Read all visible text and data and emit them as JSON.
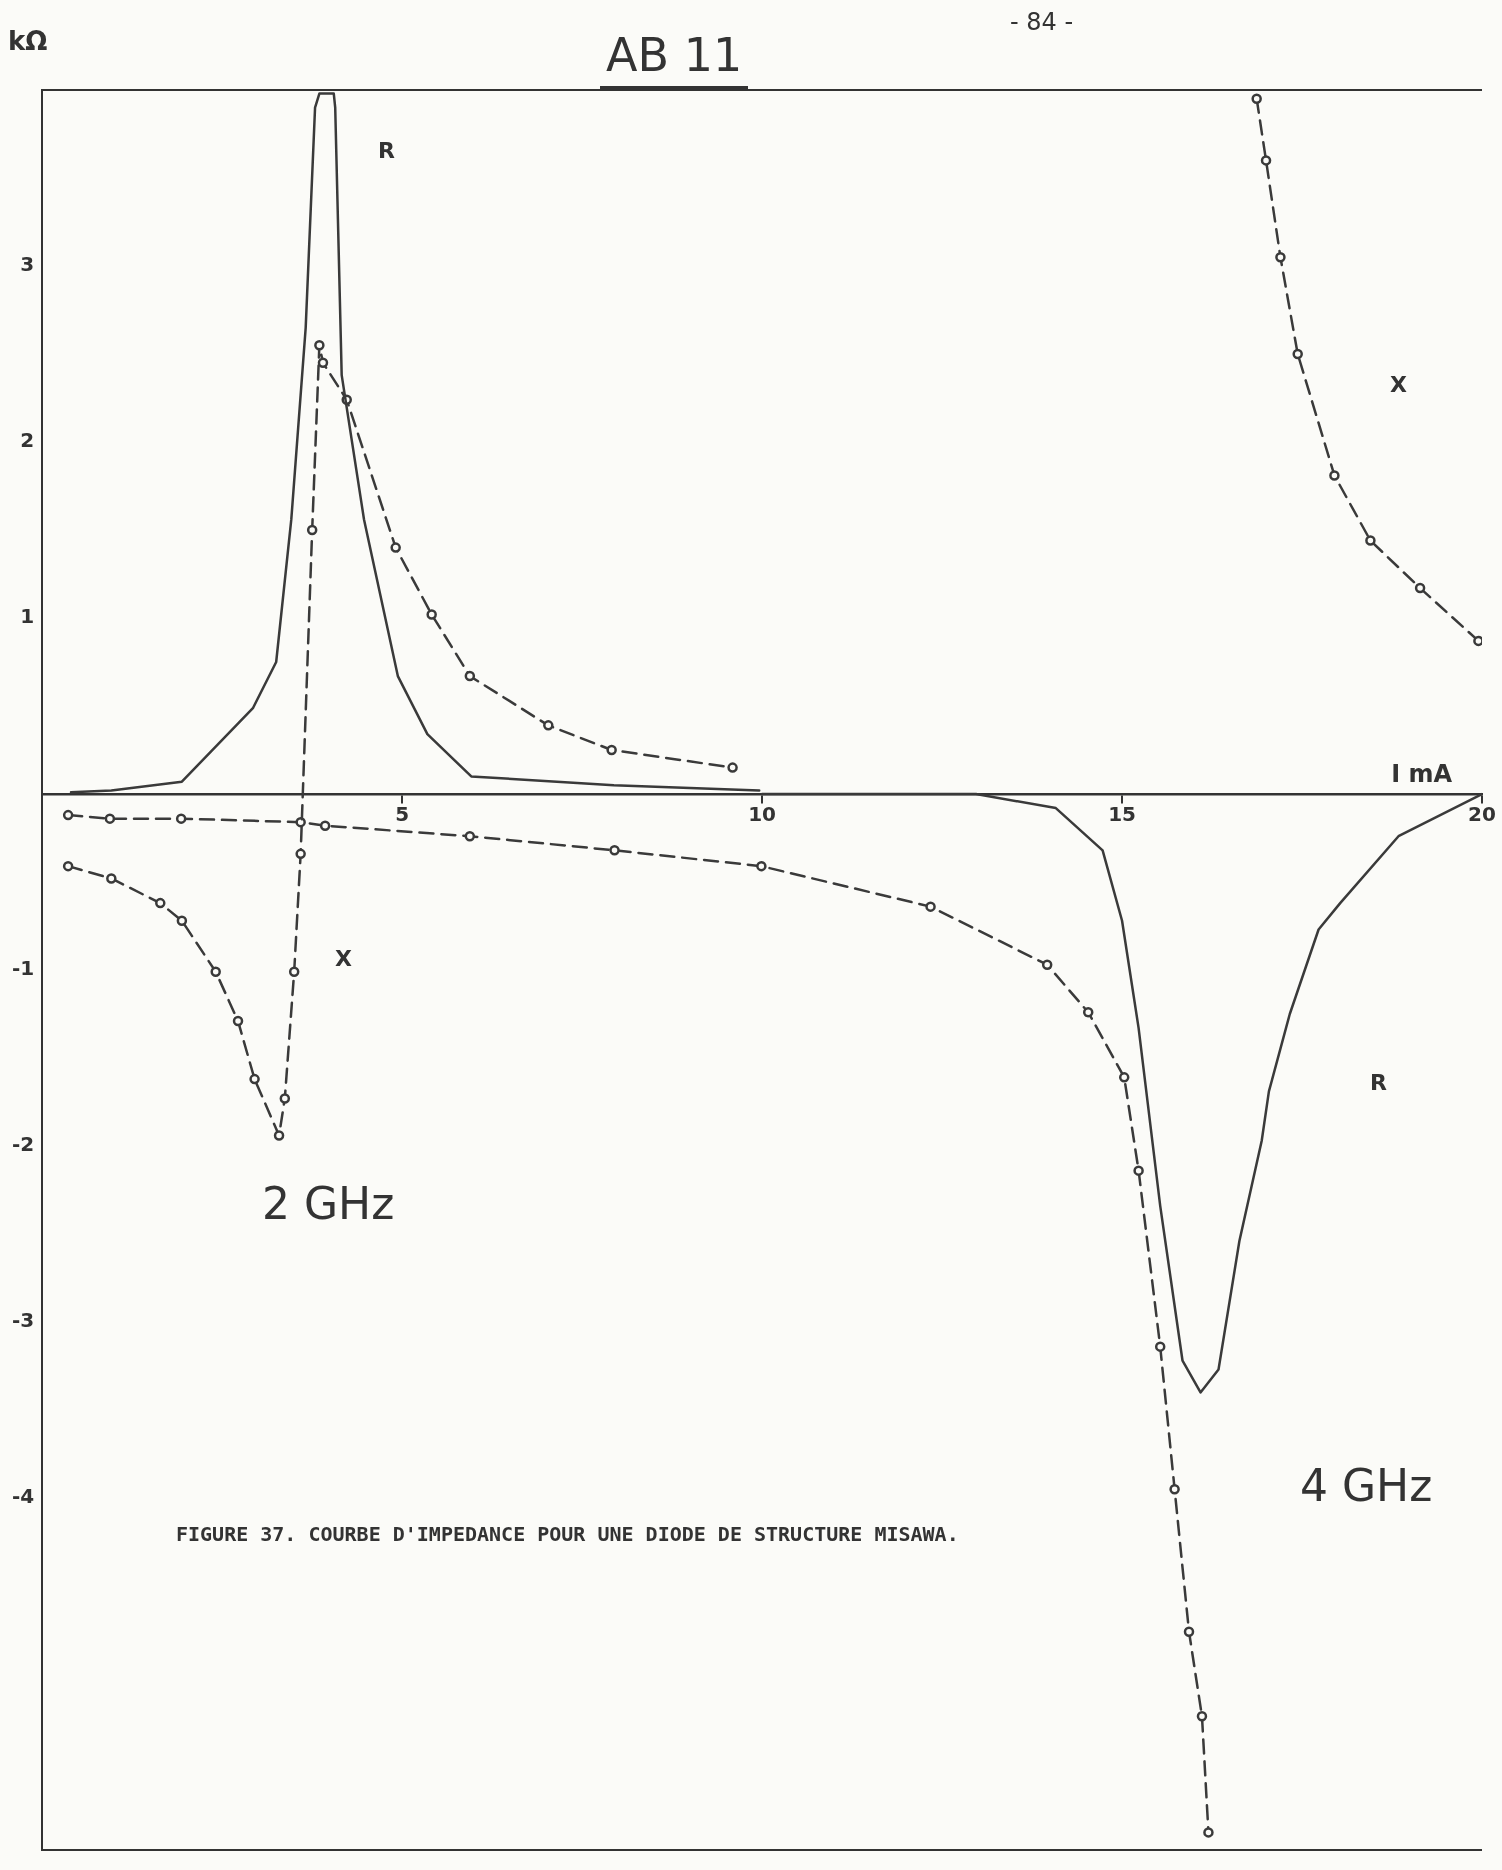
{
  "chart_data": {
    "type": "line",
    "title": "AB 11",
    "xlabel": "I mA",
    "ylabel": "kΩ",
    "xlim": [
      0,
      20
    ],
    "xticks": [
      5,
      10,
      15,
      20
    ],
    "ylim": [
      -6,
      4
    ],
    "yticks": [
      3,
      2,
      1,
      -1,
      -2,
      -3,
      -4
    ],
    "grid": false,
    "legend": false,
    "series": [
      {
        "color": "#3a3a3a",
        "line_style": "solid",
        "marker": "none",
        "x": [
          0.4,
          0.96,
          1.94,
          2.93,
          3.25,
          3.46,
          3.66,
          3.79,
          3.85,
          4.05,
          4.07,
          4.16,
          4.47,
          4.94,
          5.35,
          5.96,
          7.94,
          9.96
        ],
        "values": [
          0.01,
          0.02,
          0.07,
          0.49,
          0.75,
          1.56,
          2.65,
          3.9,
          3.98,
          3.98,
          3.9,
          2.38,
          1.56,
          0.67,
          0.34,
          0.1,
          0.05,
          0.02
        ]
      },
      {
        "color": "#3a3a3a",
        "line_style": "dashed",
        "marker": "circle",
        "x": [
          0.36,
          0.96,
          1.64,
          1.94,
          2.41,
          2.72,
          2.95,
          3.29,
          3.37,
          3.5,
          3.59,
          3.75,
          3.85,
          3.9,
          4.23,
          4.91,
          5.41,
          5.94,
          7.03,
          7.91,
          9.59
        ],
        "values": [
          -0.41,
          -0.48,
          -0.62,
          -0.72,
          -1.01,
          -1.29,
          -1.62,
          -1.94,
          -1.73,
          -1.01,
          -0.34,
          1.5,
          2.55,
          2.45,
          2.24,
          1.4,
          1.02,
          0.67,
          0.39,
          0.25,
          0.15
        ]
      },
      {
        "color": "#3a3a3a",
        "line_style": "solid",
        "marker": "none",
        "x": [
          10,
          12.97,
          14.08,
          14.73,
          15.0,
          15.23,
          15.53,
          15.84,
          16.09,
          16.34,
          16.63,
          16.94,
          17.04,
          17.33,
          17.73,
          18.03,
          18.84,
          20
        ],
        "values": [
          0.0,
          0.0,
          -0.08,
          -0.32,
          -0.72,
          -1.33,
          -2.34,
          -3.22,
          -3.4,
          -3.27,
          -2.54,
          -1.97,
          -1.69,
          -1.25,
          -0.77,
          -0.62,
          -0.24,
          0.0
        ]
      },
      {
        "color": "#3a3a3a",
        "line_style": "dashed",
        "marker": "circle",
        "x": [
          0.36,
          0.94,
          1.93,
          3.59,
          3.93,
          5.94,
          7.95,
          9.99,
          12.34,
          13.96,
          14.53,
          15.03,
          15.23,
          15.53,
          15.73,
          15.93,
          16.11,
          16.2,
          16.5,
          16.87,
          17.0,
          17.2,
          17.44,
          17.95,
          18.45,
          19.14,
          19.95
        ],
        "values": [
          -0.12,
          -0.14,
          -0.14,
          -0.16,
          -0.18,
          -0.24,
          -0.32,
          -0.41,
          -0.64,
          -0.97,
          -1.24,
          -1.61,
          -2.14,
          -3.14,
          -3.95,
          -4.76,
          -5.24,
          -5.9,
          null,
          3.95,
          3.6,
          3.05,
          2.5,
          1.81,
          1.44,
          1.17,
          0.87
        ]
      }
    ],
    "annotations": [
      "- 84 -",
      "FIGURE 37.  COURBE D'IMPEDANCE POUR UNE DIODE DE STRUCTURE MISAWA.",
      "R",
      "X",
      "2 GHz",
      "X",
      "R",
      "4 GHz"
    ]
  }
}
